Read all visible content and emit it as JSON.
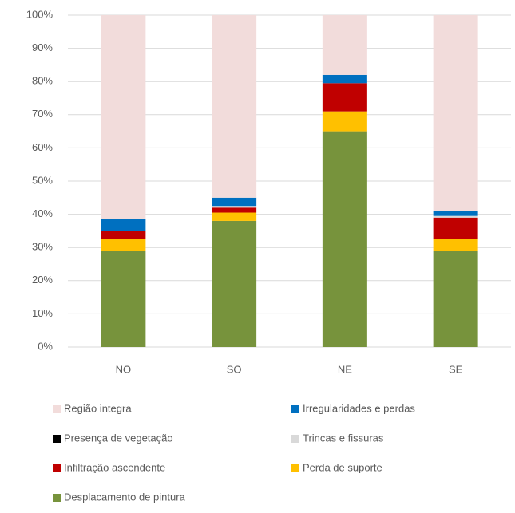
{
  "chart_data": {
    "type": "stacked_bar",
    "categories": [
      "NO",
      "SO",
      "NE",
      "SE"
    ],
    "series": [
      {
        "name": "Região integra",
        "color": "#f2dcdb",
        "values": [
          61.5,
          55,
          18,
          59
        ]
      },
      {
        "name": "Irregularidades e perdas",
        "color": "#0070c0",
        "values": [
          3.5,
          2.5,
          2.5,
          1.5
        ]
      },
      {
        "name": "Presença de vegetação",
        "color": "#000000",
        "values": [
          0,
          0,
          0,
          0
        ]
      },
      {
        "name": "Trincas e fissuras",
        "color": "#d9d9d9",
        "values": [
          0,
          0.5,
          0,
          0.5
        ]
      },
      {
        "name": "Infiltração ascendente",
        "color": "#c00000",
        "values": [
          2.5,
          1.5,
          8.5,
          6.5
        ]
      },
      {
        "name": "Perda de suporte",
        "color": "#ffc000",
        "values": [
          3.5,
          2.5,
          6,
          3.5
        ]
      },
      {
        "name": "Desplacamento de pintura",
        "color": "#77933c",
        "values": [
          29,
          38,
          65,
          29
        ]
      }
    ],
    "ylim": [
      0,
      100
    ],
    "yticks": [
      {
        "value": 0,
        "label": "0%"
      },
      {
        "value": 10,
        "label": "10%"
      },
      {
        "value": 20,
        "label": "20%"
      },
      {
        "value": 30,
        "label": "30%"
      },
      {
        "value": 40,
        "label": "40%"
      },
      {
        "value": 50,
        "label": "50%"
      },
      {
        "value": 60,
        "label": "60%"
      },
      {
        "value": 70,
        "label": "70%"
      },
      {
        "value": 80,
        "label": "80%"
      },
      {
        "value": 90,
        "label": "90%"
      },
      {
        "value": 100,
        "label": "100%"
      }
    ],
    "grid": true
  }
}
